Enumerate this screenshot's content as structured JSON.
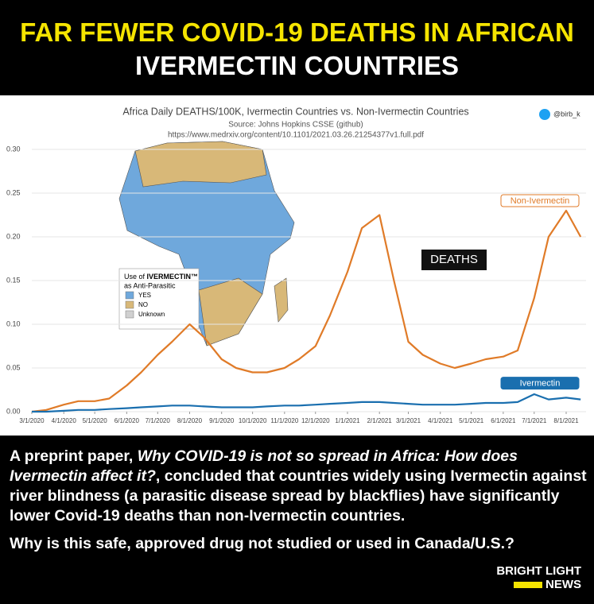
{
  "header": {
    "line1": "FAR FEWER COVID-19 DEATHS IN AFRICAN",
    "line2": "IVERMECTIN COUNTRIES"
  },
  "chart_data": {
    "type": "line",
    "title": "Africa Daily DEATHS/100K, Ivermectin Countries vs. Non-Ivermectin Countries",
    "subtitle": "Source: Johns Hopkins CSSE (github)",
    "source_url": "https://www.medrxiv.org/content/10.1101/2021.03.26.21254377v1.full.pdf",
    "handle": "@birb_k",
    "annotation": "DEATHS",
    "map_legend": {
      "title_prefix": "Use of",
      "title_bold": "IVERMECTIN™",
      "title_line2": "as Anti-Parasitic",
      "items": [
        {
          "label": "YES",
          "color": "#6fa8dc"
        },
        {
          "label": "NO",
          "color": "#d8b878"
        },
        {
          "label": "Unknown",
          "color": "#d0d0d0"
        }
      ]
    },
    "x": [
      "3/1/2020",
      "3/15/2020",
      "4/1/2020",
      "4/15/2020",
      "5/1/2020",
      "5/15/2020",
      "6/1/2020",
      "6/15/2020",
      "7/1/2020",
      "7/15/2020",
      "8/1/2020",
      "8/15/2020",
      "9/1/2020",
      "9/15/2020",
      "10/1/2020",
      "10/15/2020",
      "11/1/2020",
      "11/15/2020",
      "12/1/2020",
      "12/15/2020",
      "1/1/2021",
      "1/15/2021",
      "2/1/2021",
      "2/15/2021",
      "3/1/2021",
      "3/15/2021",
      "4/1/2021",
      "4/15/2021",
      "5/1/2021",
      "5/15/2021",
      "6/1/2021",
      "6/15/2021",
      "7/1/2021",
      "7/15/2021",
      "8/1/2021",
      "8/15/2021"
    ],
    "series": [
      {
        "name": "Non-Ivermectin",
        "color": "#e07b28",
        "values": [
          0.0,
          0.002,
          0.008,
          0.012,
          0.012,
          0.015,
          0.03,
          0.045,
          0.065,
          0.08,
          0.1,
          0.085,
          0.06,
          0.05,
          0.045,
          0.045,
          0.05,
          0.06,
          0.075,
          0.11,
          0.16,
          0.21,
          0.225,
          0.15,
          0.08,
          0.065,
          0.055,
          0.05,
          0.055,
          0.06,
          0.063,
          0.07,
          0.13,
          0.2,
          0.23,
          0.2
        ]
      },
      {
        "name": "Ivermectin",
        "color": "#1a6faf",
        "values": [
          0.0,
          0.0,
          0.001,
          0.002,
          0.002,
          0.003,
          0.004,
          0.005,
          0.006,
          0.007,
          0.007,
          0.006,
          0.005,
          0.005,
          0.005,
          0.006,
          0.007,
          0.007,
          0.008,
          0.009,
          0.01,
          0.011,
          0.011,
          0.01,
          0.009,
          0.008,
          0.008,
          0.008,
          0.009,
          0.01,
          0.01,
          0.011,
          0.02,
          0.014,
          0.016,
          0.014
        ]
      }
    ],
    "xticks": [
      "3/1/2020",
      "4/1/2020",
      "5/1/2020",
      "6/1/2020",
      "7/1/2020",
      "8/1/2020",
      "9/1/2020",
      "10/1/2020",
      "11/1/2020",
      "12/1/2020",
      "1/1/2021",
      "2/1/2021",
      "3/1/2021",
      "4/1/2021",
      "5/1/2021",
      "6/1/2021",
      "7/1/2021",
      "8/1/2021"
    ],
    "ylim": [
      0,
      0.3
    ],
    "yticks": [
      {
        "value": 0,
        "label": "0.00"
      },
      0.05,
      {
        "value": 0.1,
        "label": "0.10"
      },
      0.15,
      {
        "value": 0.2,
        "label": "0.20"
      },
      0.25,
      {
        "value": 0.3,
        "label": "0.30"
      }
    ],
    "grid": true
  },
  "body": {
    "p1_a": "A preprint paper, ",
    "p1_italic": "Why COVID-19 is not so spread in Africa: How does Ivermectin affect it?",
    "p1_b": ", concluded that countries widely using Ivermectin against river blindness (a parasitic disease spread by blackflies) have significantly lower Covid-19 deaths than non-Ivermectin countries.",
    "p2": "Why is this safe, approved drug not studied or used in Canada/U.S.?"
  },
  "logo": {
    "line1": "BRIGHT LIGHT",
    "line2": "NEWS"
  }
}
